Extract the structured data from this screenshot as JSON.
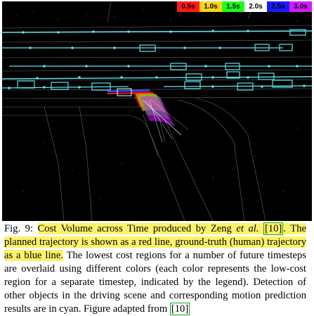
{
  "legend": [
    {
      "label": "0.5s",
      "color": "#ff1a1a"
    },
    {
      "label": "1.0s",
      "color": "#ffd21a"
    },
    {
      "label": "1.5s",
      "color": "#1aff1a"
    },
    {
      "label": "2.0s",
      "color": "#ffffff"
    },
    {
      "label": "2.5s",
      "color": "#1a1aff"
    },
    {
      "label": "3.0s",
      "color": "#d21aff"
    }
  ],
  "caption": {
    "fig_label": "Fig. 9:",
    "hl_part1": "Cost Volume across Time produced by Zeng ",
    "hl_etal": "et al.",
    "ref1": "[10]",
    "hl_part2": ". The planned trajectory is shown as a red line, ground-truth (human) trajectory as a blue line.",
    "rest": " The lowest cost regions for a number of future timesteps are overlaid using different colors (each color represents the low-cost region for a separate timestep, indicated by the legend). Detection of other objects in the driving scene and corresponding motion prediction results are in cyan. Figure adapted from ",
    "ref2": "[10]"
  },
  "colors": {
    "background": "#000000",
    "objects": "#5fe3ee",
    "planned": "#ff2020",
    "ground_truth": "#2a4cff",
    "highlight": "#fdf26a",
    "ref_box": "#18a318"
  }
}
